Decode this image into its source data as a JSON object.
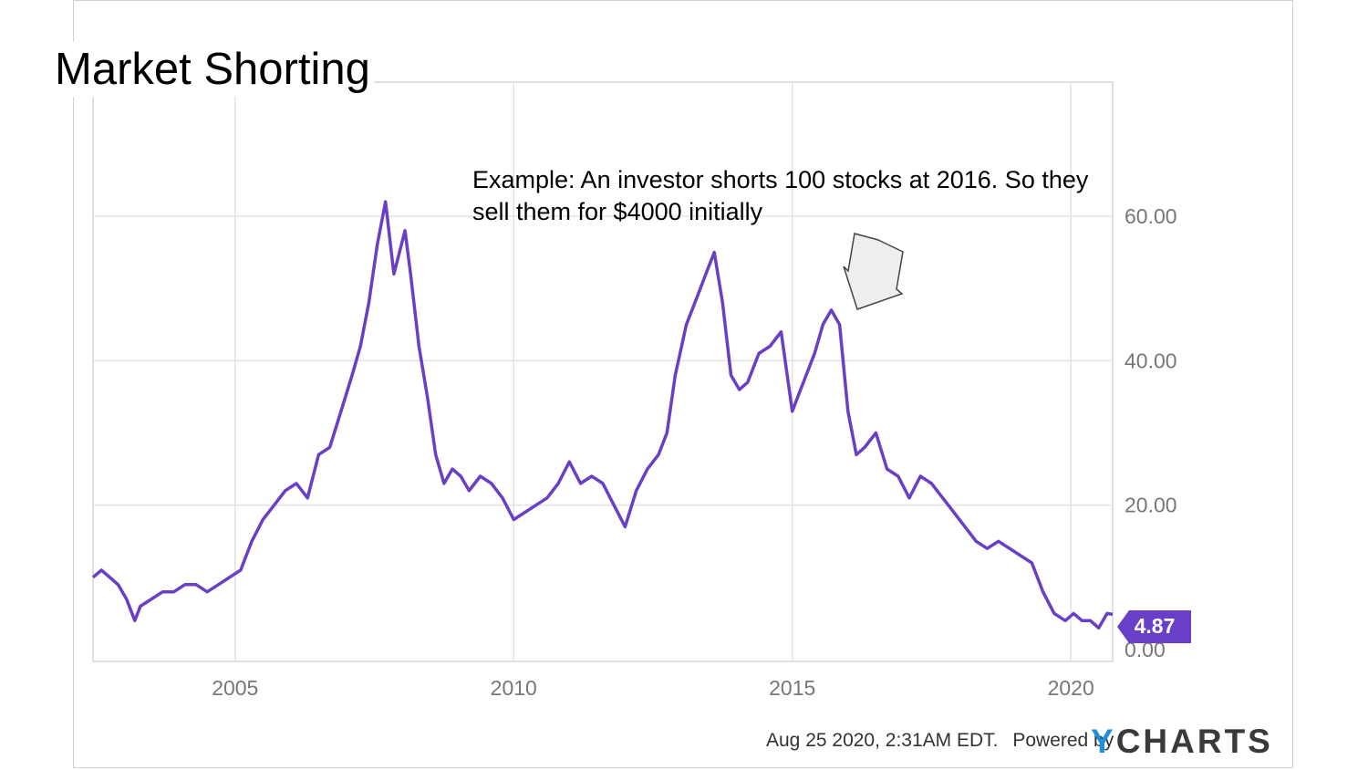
{
  "slide": {
    "title": "Market Shorting",
    "annotation": "Example: An investor shorts 100 stocks at 2016. So they sell them for $4000 initially"
  },
  "footer": {
    "timestamp": "Aug 25 2020, 2:31AM EDT.",
    "powered_by": "Powered by",
    "brand_y": "Y",
    "brand_rest": "CHARTS"
  },
  "colors": {
    "line": "#6a3fc7",
    "badge": "#6a3fc7",
    "grid": "#e3e3e3",
    "arrow_fill": "#eeeeee"
  },
  "chart_data": {
    "type": "line",
    "x_ticks": [
      "2005",
      "2010",
      "2015",
      "2020"
    ],
    "y_ticks": [
      "0.00",
      "20.00",
      "40.00",
      "60.00"
    ],
    "ylim": [
      0,
      80
    ],
    "xlim": [
      2002.45,
      2020.75
    ],
    "last_value_label": "4.87",
    "grid": true,
    "series": [
      {
        "x": [
          2002.45,
          2002.6,
          2002.75,
          2002.9,
          2003.05,
          2003.2,
          2003.3,
          2003.5,
          2003.7,
          2003.9,
          2004.1,
          2004.3,
          2004.5,
          2004.7,
          2004.9,
          2005.1,
          2005.3,
          2005.5,
          2005.7,
          2005.9,
          2006.1,
          2006.3,
          2006.5,
          2006.7,
          2006.9,
          2007.1,
          2007.25,
          2007.4,
          2007.55,
          2007.7,
          2007.85,
          2007.95,
          2008.05,
          2008.15,
          2008.3,
          2008.45,
          2008.6,
          2008.75,
          2008.9,
          2009.05,
          2009.2,
          2009.4,
          2009.6,
          2009.8,
          2010.0,
          2010.2,
          2010.4,
          2010.6,
          2010.8,
          2011.0,
          2011.2,
          2011.4,
          2011.6,
          2011.8,
          2012.0,
          2012.2,
          2012.4,
          2012.6,
          2012.75,
          2012.9,
          2013.1,
          2013.3,
          2013.45,
          2013.6,
          2013.75,
          2013.9,
          2014.05,
          2014.2,
          2014.4,
          2014.6,
          2014.8,
          2015.0,
          2015.2,
          2015.4,
          2015.55,
          2015.7,
          2015.85,
          2016.0,
          2016.15,
          2016.3,
          2016.5,
          2016.7,
          2016.9,
          2017.1,
          2017.3,
          2017.5,
          2017.7,
          2017.9,
          2018.1,
          2018.3,
          2018.5,
          2018.7,
          2018.9,
          2019.1,
          2019.3,
          2019.5,
          2019.7,
          2019.9,
          2020.05,
          2020.2,
          2020.35,
          2020.5,
          2020.65,
          2020.75
        ],
        "y": [
          10,
          11,
          10,
          9,
          7,
          4,
          6,
          7,
          8,
          8,
          9,
          9,
          8,
          9,
          10,
          11,
          15,
          18,
          20,
          22,
          23,
          21,
          27,
          28,
          33,
          38,
          42,
          48,
          56,
          62,
          52,
          55,
          58,
          52,
          42,
          35,
          27,
          23,
          25,
          24,
          22,
          24,
          23,
          21,
          18,
          19,
          20,
          21,
          23,
          26,
          23,
          24,
          23,
          20,
          17,
          22,
          25,
          27,
          30,
          38,
          45,
          49,
          52,
          55,
          48,
          38,
          36,
          37,
          41,
          42,
          44,
          33,
          37,
          41,
          45,
          47,
          45,
          33,
          27,
          28,
          30,
          25,
          24,
          21,
          24,
          23,
          21,
          19,
          17,
          15,
          14,
          15,
          14,
          13,
          12,
          8,
          5,
          4,
          5,
          4,
          4,
          3,
          5,
          4.87
        ]
      }
    ]
  }
}
